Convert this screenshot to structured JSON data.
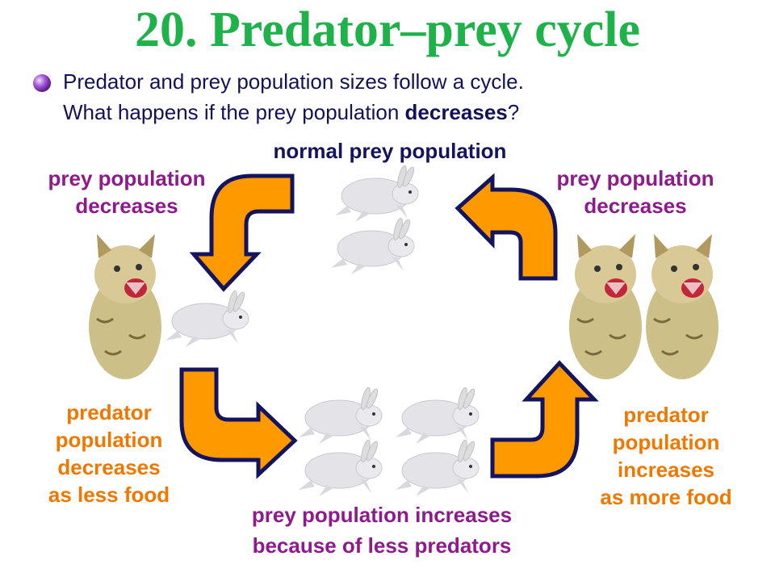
{
  "title": "20.  Predator–prey cycle",
  "bullet": {
    "icon": "purple-sphere-bullet-icon",
    "line1": "Predator and prey population sizes follow a cycle.",
    "line2_prefix": "What happens if the prey population ",
    "line2_bold": "decreases",
    "line2_suffix": "?"
  },
  "labels": {
    "top": "normal prey population",
    "top_left": [
      "prey population",
      "decreases"
    ],
    "top_right": [
      "prey population",
      "decreases"
    ],
    "bottom_left": [
      "predator",
      "population",
      "decreases",
      "as less food"
    ],
    "bottom_right": [
      "predator",
      "population",
      "increases",
      "as more food"
    ],
    "bottom": [
      "prey population increases",
      "because of less predators"
    ]
  },
  "colors": {
    "title": "#1fb14a",
    "text": "#14145e",
    "purple_label": "#8e1a8e",
    "orange_label": "#f07800",
    "arrow_fill": "#ff9900",
    "arrow_outline": "#14145e"
  }
}
